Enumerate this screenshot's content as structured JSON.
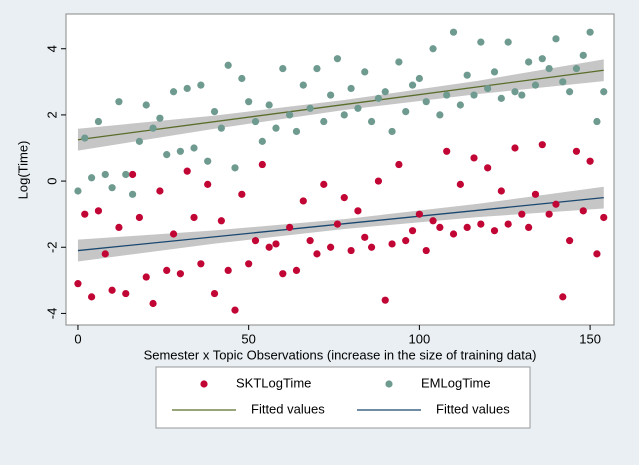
{
  "chart_data": {
    "type": "scatter",
    "xlabel": "Semester x Topic Observations (increase in the size of training data)",
    "ylabel": "Log(Time)",
    "xlim": [
      -3.5,
      157
    ],
    "ylim": [
      -4.35,
      5.05
    ],
    "xticks": [
      0,
      50,
      100,
      150
    ],
    "yticks": [
      -4,
      -2,
      0,
      2,
      4
    ],
    "x": [
      0,
      2,
      4,
      6,
      8,
      10,
      12,
      14,
      16,
      18,
      20,
      22,
      24,
      26,
      28,
      30,
      32,
      34,
      36,
      38,
      40,
      42,
      44,
      46,
      48,
      50,
      52,
      54,
      56,
      58,
      60,
      62,
      64,
      66,
      68,
      70,
      72,
      74,
      76,
      78,
      80,
      82,
      84,
      86,
      88,
      90,
      92,
      94,
      96,
      98,
      100,
      102,
      104,
      106,
      108,
      110,
      112,
      114,
      116,
      118,
      120,
      122,
      124,
      126,
      128,
      130,
      132,
      134,
      136,
      138,
      140,
      142,
      144,
      146,
      148,
      150,
      152,
      154
    ],
    "series": [
      {
        "name": "SKTLogTime",
        "type": "scatter",
        "color": "#c10534",
        "values": [
          -3.1,
          -1.0,
          -3.5,
          -0.9,
          -2.2,
          -3.3,
          -1.4,
          -3.4,
          0.2,
          -1.1,
          -2.9,
          -3.7,
          -0.3,
          -2.7,
          -1.6,
          -2.8,
          0.3,
          -1.1,
          -2.5,
          -0.1,
          -3.4,
          -1.2,
          -2.7,
          -3.9,
          -0.4,
          -2.5,
          -1.8,
          0.5,
          -2.0,
          -1.9,
          -2.8,
          -1.4,
          -2.7,
          -0.6,
          -1.8,
          -2.2,
          -0.1,
          -2.0,
          -1.3,
          -0.5,
          -2.1,
          -0.9,
          -1.7,
          -2.0,
          0.0,
          -3.6,
          -1.9,
          0.5,
          -1.8,
          -1.5,
          -1.0,
          -2.1,
          -1.2,
          -1.4,
          0.9,
          -1.6,
          -0.1,
          -1.4,
          0.7,
          -1.3,
          0.4,
          -1.5,
          -0.3,
          -1.3,
          1.0,
          -1.0,
          -1.4,
          -0.4,
          1.1,
          -1.0,
          -0.7,
          -3.5,
          -1.8,
          0.9,
          -0.9,
          0.6,
          -2.2,
          -1.1
        ]
      },
      {
        "name": "EMLogTime",
        "type": "scatter",
        "color": "#6e9a8f",
        "values": [
          -0.3,
          1.3,
          0.1,
          1.8,
          0.2,
          -0.2,
          2.4,
          0.2,
          -0.4,
          1.2,
          2.3,
          1.6,
          1.9,
          0.8,
          2.7,
          0.9,
          2.8,
          1.0,
          2.9,
          0.6,
          2.1,
          1.6,
          3.5,
          0.4,
          3.1,
          2.4,
          1.8,
          1.2,
          2.3,
          1.6,
          3.4,
          2.0,
          1.5,
          2.9,
          2.2,
          3.4,
          1.8,
          2.6,
          3.7,
          2.0,
          2.8,
          2.2,
          3.3,
          1.8,
          2.5,
          2.7,
          1.5,
          3.6,
          2.1,
          2.9,
          3.1,
          2.4,
          4.0,
          2.0,
          2.6,
          4.5,
          2.3,
          3.2,
          2.6,
          4.2,
          2.8,
          3.3,
          2.5,
          4.2,
          2.7,
          2.6,
          3.6,
          2.9,
          3.7,
          3.4,
          4.3,
          3.0,
          2.7,
          3.4,
          3.8,
          4.5,
          1.8,
          2.7
        ]
      },
      {
        "name": "Fitted values",
        "type": "line",
        "color": "#5a6d2a",
        "x": [
          0,
          154
        ],
        "values": [
          1.25,
          3.35
        ],
        "band": {
          "color": "#b3b3b3",
          "x": [
            0,
            40,
            78,
            117,
            154
          ],
          "lower": [
            0.92,
            1.58,
            2.15,
            2.63,
            3.02
          ],
          "upper": [
            1.58,
            1.98,
            2.45,
            3.03,
            3.68
          ]
        }
      },
      {
        "name": "Fitted values",
        "type": "line",
        "color": "#1a476f",
        "x": [
          0,
          154
        ],
        "values": [
          -2.1,
          -0.5
        ],
        "band": {
          "color": "#b3b3b3",
          "x": [
            0,
            40,
            78,
            117,
            154
          ],
          "lower": [
            -2.43,
            -1.89,
            -1.45,
            -1.09,
            -0.83
          ],
          "upper": [
            -1.77,
            -1.49,
            -1.15,
            -0.69,
            -0.17
          ]
        }
      }
    ]
  }
}
